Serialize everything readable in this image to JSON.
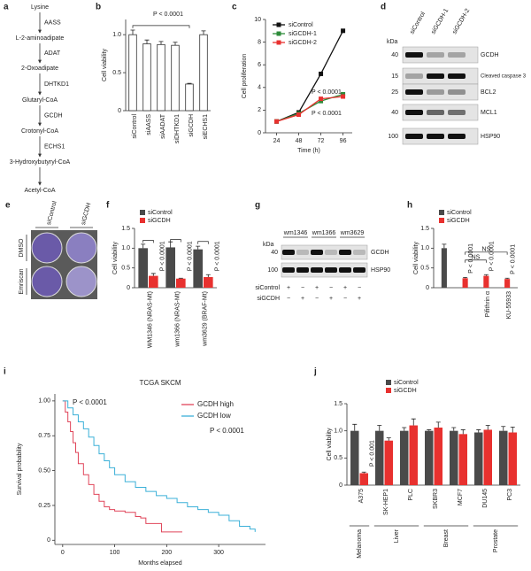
{
  "pathway": {
    "letter": "a",
    "nodes": [
      "Lysine",
      "L-2-aminoadipate",
      "2-Oxoadipate",
      "Glutaryl-CoA",
      "Crotonyl-CoA",
      "3-Hydroxybutyryl-CoA",
      "Acetyl-CoA"
    ],
    "enzymes": [
      "AASS",
      "ADAT",
      "DHTKD1",
      "GCDH",
      "ECHS1"
    ]
  },
  "blot_d": {
    "letter": "d",
    "unit": "kDa",
    "lanes": [
      "siControl",
      "siGCDH-1",
      "siGCDH-2"
    ],
    "markers": [
      40,
      15,
      25,
      40,
      100
    ],
    "bands": [
      "GCDH",
      "Cleaved caspase 3",
      "BCL2",
      "MCL1",
      "HSP90"
    ]
  },
  "plates_e": {
    "letter": "e",
    "columns": [
      "siControl",
      "siGCDH"
    ],
    "rows": [
      "DMSO",
      "Emriscan"
    ]
  },
  "blot_g": {
    "letter": "g",
    "unit": "kDa",
    "lines": [
      "wm1346",
      "wm1366",
      "wm3629"
    ],
    "markers": [
      40,
      100
    ],
    "bands": [
      "GCDH",
      "HSP90"
    ],
    "conditions": [
      {
        "name": "siControl",
        "signs": [
          "+",
          "−",
          "+",
          "−",
          "+",
          "−"
        ]
      },
      {
        "name": "siGCDH",
        "signs": [
          "−",
          "+",
          "−",
          "+",
          "−",
          "+"
        ]
      }
    ]
  },
  "chart_data": [
    {
      "type": "bar",
      "letter": "b",
      "ylabel": "Cell viability",
      "categories": [
        "siControl",
        "siAASS",
        "siAADAT",
        "siDHTKD1",
        "siGCDH",
        "siECHS1"
      ],
      "values": [
        1.0,
        0.88,
        0.87,
        0.86,
        0.35,
        1.0
      ],
      "errors": [
        0.06,
        0.05,
        0.04,
        0.04,
        0.01,
        0.05
      ],
      "color": "#ffffff",
      "edgecolor": "#333333",
      "ylim": [
        0,
        1.2
      ],
      "yticks": [
        0,
        0.5,
        {
          "value": 1,
          "label": "1.0"
        }
      ],
      "annotations": [
        "P < 0.0001"
      ]
    },
    {
      "type": "line",
      "letter": "c",
      "xlabel": "Time (h)",
      "ylabel": "Cell proliferation",
      "x": [
        24,
        48,
        72,
        96
      ],
      "series": [
        {
          "name": "siControl",
          "color": "#111111",
          "values": [
            1.0,
            1.8,
            5.2,
            9.0
          ]
        },
        {
          "name": "siGCDH-1",
          "color": "#2e8b3a",
          "values": [
            1.0,
            1.7,
            2.8,
            3.4
          ]
        },
        {
          "name": "siGCDH-2",
          "color": "#e8312f",
          "values": [
            1.0,
            1.6,
            3.0,
            3.2
          ]
        }
      ],
      "xlim": [
        12,
        106
      ],
      "xticks": [
        24,
        48,
        72,
        96
      ],
      "ylim": [
        0,
        10
      ],
      "yticks": [
        0,
        2,
        4,
        6,
        8,
        10
      ],
      "legend": "upper left",
      "annotations": [
        {
          "text": "P < 0.0001",
          "color": "#2e8b3a"
        },
        {
          "text": "P < 0.0001",
          "color": "#e8312f"
        }
      ]
    },
    {
      "type": "bar",
      "letter": "f",
      "ylabel": "Cell viability",
      "categories": [
        "WM1346 (NRAS-Mt)",
        "wm1366 (NRAS-Mt)",
        "wm3629 (BRAF-Mt)"
      ],
      "series": [
        {
          "name": "siControl",
          "color": "#4a4a4a",
          "values": [
            1.0,
            1.02,
            0.97
          ],
          "errors": [
            0.1,
            0.14,
            0.08
          ]
        },
        {
          "name": "siGCDH",
          "color": "#e8312f",
          "values": [
            0.3,
            0.23,
            0.27
          ],
          "errors": [
            0.06,
            0.01,
            0.06
          ]
        }
      ],
      "ylim": [
        0,
        1.5
      ],
      "yticks": [
        0,
        0.5,
        {
          "value": 1,
          "label": "1.0"
        },
        1.5
      ],
      "legend": "upper left",
      "annotations": [
        "P < 0.0001",
        "P < 0.0001",
        "P < 0.0001"
      ]
    },
    {
      "type": "bar",
      "letter": "h",
      "ylabel": "Cell viability",
      "categories": [
        null,
        null,
        "Pifithrin α",
        "KU-55933"
      ],
      "series": [
        {
          "name": "siControl",
          "color": "#4a4a4a",
          "values": [
            1.0,
            null,
            null,
            null
          ],
          "errors": [
            0.1,
            null,
            null,
            null
          ]
        },
        {
          "name": "siGCDH",
          "color": "#e8312f",
          "values": [
            null,
            0.24,
            0.3,
            0.22
          ],
          "errors": [
            null,
            0.02,
            0.03,
            0.02
          ]
        }
      ],
      "ylim": [
        0,
        1.5
      ],
      "yticks": [
        0,
        0.5,
        {
          "value": 1,
          "label": "1.0"
        },
        1.5
      ],
      "legend": "upper left",
      "annotations": [
        "P < 0.0001",
        "P < 0.0001",
        "P < 0.0001",
        "NS",
        "NS"
      ]
    },
    {
      "type": "line",
      "steps": true,
      "letter": "i",
      "title": "TCGA SKCM",
      "xlabel": "Months elapsed",
      "ylabel": "Survival probability",
      "series": [
        {
          "name": "GCDH high",
          "color": "#e0455a",
          "x": [
            0,
            5,
            10,
            15,
            20,
            25,
            30,
            40,
            50,
            60,
            70,
            80,
            90,
            100,
            120,
            140,
            150,
            160,
            190,
            230
          ],
          "values": [
            1.0,
            0.92,
            0.85,
            0.78,
            0.7,
            0.63,
            0.55,
            0.47,
            0.4,
            0.33,
            0.28,
            0.24,
            0.22,
            0.21,
            0.2,
            0.17,
            0.16,
            0.12,
            0.06,
            0.06
          ]
        },
        {
          "name": "GCDH low",
          "color": "#3bb0d8",
          "x": [
            0,
            10,
            20,
            30,
            40,
            50,
            60,
            70,
            80,
            90,
            100,
            120,
            140,
            160,
            180,
            200,
            220,
            240,
            260,
            280,
            300,
            320,
            340,
            360,
            370
          ],
          "values": [
            1.0,
            0.95,
            0.9,
            0.85,
            0.8,
            0.74,
            0.68,
            0.62,
            0.57,
            0.52,
            0.47,
            0.42,
            0.38,
            0.35,
            0.32,
            0.3,
            0.27,
            0.24,
            0.22,
            0.2,
            0.18,
            0.14,
            0.1,
            0.08,
            0.06
          ]
        }
      ],
      "xlim": [
        -15,
        390
      ],
      "xticks": [
        0,
        100,
        200,
        300
      ],
      "ylim": [
        -0.03,
        1.05
      ],
      "yticks": [
        0,
        0.25,
        {
          "value": 0.5,
          "label": "0.50"
        },
        0.75,
        {
          "value": 1,
          "label": "1.00"
        }
      ],
      "legend": "upper right",
      "annotations": [
        "P < 0.0001",
        "P < 0.0001"
      ]
    },
    {
      "type": "bar",
      "letter": "j",
      "ylabel": "Cell viability",
      "categories": [
        "A375",
        "SK-HEP1",
        "PLC",
        "SKBR3",
        "MCF7",
        "DU145",
        "PC3"
      ],
      "series": [
        {
          "name": "siControl",
          "color": "#4a4a4a",
          "values": [
            1.0,
            1.0,
            1.0,
            1.0,
            1.0,
            0.97,
            1.0
          ],
          "errors": [
            0.12,
            0.1,
            0.06,
            0.02,
            0.06,
            0.05,
            0.08
          ]
        },
        {
          "name": "siGCDH",
          "color": "#e8312f",
          "values": [
            0.22,
            0.82,
            1.1,
            1.06,
            0.94,
            1.02,
            0.97
          ],
          "errors": [
            0.02,
            0.05,
            0.12,
            0.1,
            0.08,
            0.08,
            0.1
          ]
        }
      ],
      "ylim": [
        0,
        1.5
      ],
      "yticks": [
        0,
        0.5,
        {
          "value": 1,
          "label": "1.0"
        },
        1.5
      ],
      "legend": "upper left",
      "groups": [
        "Melanoma",
        "Liver",
        "Breast",
        "Prostate"
      ],
      "annotations": [
        "P < 0.001"
      ]
    }
  ]
}
